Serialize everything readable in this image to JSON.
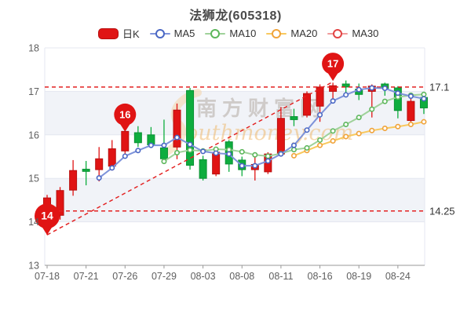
{
  "title": "法狮龙(605318)",
  "legend": {
    "items": [
      {
        "label": "日K",
        "type": "kline",
        "key": "kline"
      },
      {
        "label": "MA5",
        "type": "line",
        "key": "ma5"
      },
      {
        "label": "MA10",
        "type": "line",
        "key": "ma10"
      },
      {
        "label": "MA20",
        "type": "line",
        "key": "ma20"
      },
      {
        "label": "MA30",
        "type": "line",
        "key": "ma30"
      }
    ]
  },
  "watermark": {
    "cn": "南方财富网",
    "en": "outhmoney.com"
  },
  "colors": {
    "up": "#e01414",
    "up_border": "#b80f0f",
    "down": "#0ead3e",
    "down_border": "#0a9133",
    "ma5": {
      "line": "#7e93da",
      "ring": "#4a67c4"
    },
    "ma10": {
      "line": "#9fd29a",
      "ring": "#5db75c"
    },
    "ma20": {
      "line": "#f8c95e",
      "ring": "#f0a33a"
    },
    "ma30": {
      "line": "#f09a9a",
      "ring": "#e24444"
    },
    "dashed": "#e32020",
    "band": "#f1f3f8",
    "grid": "#e4e7f0",
    "axis": "#999999",
    "tick_text": "#5f5f5f",
    "threshold_text": "#333333",
    "balloon": "#e01414",
    "balloon_text": "#ffffff"
  },
  "chart_data": {
    "type": "candlestick",
    "title": "法狮龙(605318)",
    "ylim": [
      13,
      18
    ],
    "y_ticks": [
      18,
      17,
      16,
      15,
      14,
      13
    ],
    "x_tick_labels": [
      {
        "index": 0,
        "label": "07-18"
      },
      {
        "index": 3,
        "label": "07-21"
      },
      {
        "index": 6,
        "label": "07-26"
      },
      {
        "index": 9,
        "label": "07-29"
      },
      {
        "index": 12,
        "label": "08-03"
      },
      {
        "index": 15,
        "label": "08-08"
      },
      {
        "index": 18,
        "label": "08-11"
      },
      {
        "index": 21,
        "label": "08-16"
      },
      {
        "index": 24,
        "label": "08-19"
      },
      {
        "index": 27,
        "label": "08-24"
      }
    ],
    "legend_position": "top",
    "grid_bands": "alternating horizontal bands between integer prices",
    "thresholds": [
      {
        "price": 17.1,
        "label": "17.1"
      },
      {
        "price": 14.25,
        "label": "14.25"
      }
    ],
    "trendline": {
      "from": {
        "index": 0,
        "price": 13.7
      },
      "to": {
        "index": 22,
        "price": 17.22
      }
    },
    "markers": [
      {
        "index": 0,
        "label": "14",
        "tip_price": 13.7,
        "r": 16
      },
      {
        "index": 6,
        "label": "16",
        "tip_price": 16.07,
        "r": 14
      },
      {
        "index": 22,
        "label": "17",
        "tip_price": 17.24,
        "r": 14
      }
    ],
    "candles": [
      {
        "date": "07-18",
        "open": 14.02,
        "close": 14.55,
        "high": 14.62,
        "low": 13.7
      },
      {
        "date": "07-19",
        "open": 14.15,
        "close": 14.72,
        "high": 14.8,
        "low": 14.05
      },
      {
        "date": "07-20",
        "open": 14.73,
        "close": 15.18,
        "high": 15.42,
        "low": 14.6
      },
      {
        "date": "07-21",
        "open": 15.21,
        "close": 15.16,
        "high": 15.4,
        "low": 14.84
      },
      {
        "date": "07-22",
        "open": 15.2,
        "close": 15.45,
        "high": 15.72,
        "low": 14.93
      },
      {
        "date": "07-25",
        "open": 15.28,
        "close": 15.68,
        "high": 15.88,
        "low": 15.18
      },
      {
        "date": "07-26",
        "open": 15.63,
        "close": 16.08,
        "high": 16.15,
        "low": 15.55
      },
      {
        "date": "07-27",
        "open": 16.05,
        "close": 15.82,
        "high": 16.2,
        "low": 15.72
      },
      {
        "date": "07-28",
        "open": 16.0,
        "close": 15.77,
        "high": 16.18,
        "low": 15.7
      },
      {
        "date": "07-29",
        "open": 15.7,
        "close": 15.45,
        "high": 16.35,
        "low": 15.4
      },
      {
        "date": "08-01",
        "open": 15.72,
        "close": 16.57,
        "high": 16.72,
        "low": 15.44
      },
      {
        "date": "08-02",
        "open": 17.02,
        "close": 15.3,
        "high": 17.08,
        "low": 15.2
      },
      {
        "date": "08-03",
        "open": 15.43,
        "close": 15.0,
        "high": 15.52,
        "low": 14.95
      },
      {
        "date": "08-04",
        "open": 15.1,
        "close": 15.6,
        "high": 15.66,
        "low": 15.05
      },
      {
        "date": "08-05",
        "open": 15.84,
        "close": 15.33,
        "high": 15.88,
        "low": 15.15
      },
      {
        "date": "08-08",
        "open": 15.42,
        "close": 15.2,
        "high": 15.5,
        "low": 15.05
      },
      {
        "date": "08-09",
        "open": 15.2,
        "close": 15.32,
        "high": 15.52,
        "low": 14.95
      },
      {
        "date": "08-10",
        "open": 15.15,
        "close": 15.56,
        "high": 15.6,
        "low": 15.1
      },
      {
        "date": "08-11",
        "open": 15.56,
        "close": 16.38,
        "high": 16.64,
        "low": 15.5
      },
      {
        "date": "08-12",
        "open": 16.42,
        "close": 16.35,
        "high": 16.6,
        "low": 16.2
      },
      {
        "date": "08-15",
        "open": 16.45,
        "close": 16.95,
        "high": 17.0,
        "low": 16.4
      },
      {
        "date": "08-16",
        "open": 16.66,
        "close": 17.1,
        "high": 17.16,
        "low": 16.3
      },
      {
        "date": "08-17",
        "open": 17.0,
        "close": 17.13,
        "high": 17.2,
        "low": 16.73
      },
      {
        "date": "08-18",
        "open": 17.17,
        "close": 17.1,
        "high": 17.25,
        "low": 16.9
      },
      {
        "date": "08-19",
        "open": 17.05,
        "close": 16.93,
        "high": 17.18,
        "low": 16.8
      },
      {
        "date": "08-22",
        "open": 17.0,
        "close": 17.12,
        "high": 17.16,
        "low": 16.4
      },
      {
        "date": "08-23",
        "open": 17.17,
        "close": 17.07,
        "high": 17.2,
        "low": 16.9
      },
      {
        "date": "08-24",
        "open": 17.08,
        "close": 16.56,
        "high": 17.12,
        "low": 16.38
      },
      {
        "date": "08-25",
        "open": 16.33,
        "close": 16.77,
        "high": 16.88,
        "low": 16.3
      },
      {
        "date": "08-26",
        "open": 16.86,
        "close": 16.62,
        "high": 16.93,
        "low": 16.48
      }
    ],
    "ma5": [
      null,
      null,
      null,
      null,
      15.01,
      15.24,
      15.51,
      15.64,
      15.76,
      15.76,
      15.94,
      15.78,
      15.62,
      15.58,
      15.56,
      15.29,
      15.29,
      15.4,
      15.56,
      15.76,
      16.11,
      16.46,
      16.78,
      16.92,
      17.04,
      17.08,
      17.07,
      16.96,
      16.89,
      16.83
    ],
    "ma10": [
      null,
      null,
      null,
      null,
      null,
      null,
      null,
      null,
      null,
      15.39,
      15.59,
      15.65,
      15.63,
      15.67,
      15.66,
      15.61,
      15.54,
      15.51,
      15.57,
      15.66,
      15.7,
      15.88,
      16.09,
      16.24,
      16.4,
      16.59,
      16.77,
      16.87,
      16.91,
      16.93
    ],
    "ma20": [
      null,
      null,
      null,
      null,
      null,
      null,
      null,
      null,
      null,
      null,
      null,
      null,
      null,
      null,
      null,
      null,
      null,
      null,
      null,
      15.52,
      15.64,
      15.76,
      15.86,
      15.96,
      16.03,
      16.1,
      16.15,
      16.19,
      16.24,
      16.3
    ],
    "ma30": []
  }
}
